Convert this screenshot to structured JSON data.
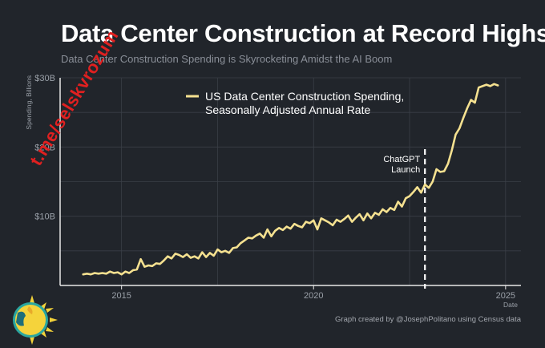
{
  "title": "Data Center Construction at Record Highs",
  "subtitle": "Data Center Construction Spending is Skyrocketing Amidst the AI Boom",
  "footer": "Graph created by @JosephPolitano using Census data",
  "watermark": "t.me/selskvrozum",
  "logo_icon": "sun-logo-icon",
  "colors": {
    "background": "#21252b",
    "line": "#f5e190",
    "grid": "#3a3f47",
    "axis_text": "#9aa0a8",
    "annotation": "#ffffff"
  },
  "chart_data": {
    "type": "line",
    "ylabel": "Spending, Billions",
    "xlabel": "Date",
    "xlim": [
      2013.4,
      2025.4
    ],
    "ylim": [
      0,
      30
    ],
    "x_ticks": [
      2015,
      2020,
      2025
    ],
    "x_tick_labels": [
      "2015",
      "2020",
      "2025"
    ],
    "y_ticks": [
      10,
      20,
      30
    ],
    "y_tick_labels": [
      "$10B",
      "$20B",
      "$30B"
    ],
    "grid": true,
    "legend": "top-center",
    "series": [
      {
        "name": "US Data Center Construction Spending, Seasonally Adjusted Annual Rate",
        "x": [
          2014.0,
          2014.1,
          2014.2,
          2014.3,
          2014.4,
          2014.5,
          2014.6,
          2014.7,
          2014.8,
          2014.9,
          2015.0,
          2015.1,
          2015.2,
          2015.3,
          2015.4,
          2015.5,
          2015.6,
          2015.7,
          2015.8,
          2015.9,
          2016.0,
          2016.1,
          2016.2,
          2016.3,
          2016.4,
          2016.5,
          2016.6,
          2016.7,
          2016.8,
          2016.9,
          2017.0,
          2017.1,
          2017.2,
          2017.3,
          2017.4,
          2017.5,
          2017.6,
          2017.7,
          2017.8,
          2017.9,
          2018.0,
          2018.1,
          2018.2,
          2018.3,
          2018.4,
          2018.5,
          2018.6,
          2018.7,
          2018.8,
          2018.9,
          2019.0,
          2019.1,
          2019.2,
          2019.3,
          2019.4,
          2019.5,
          2019.6,
          2019.7,
          2019.8,
          2019.9,
          2020.0,
          2020.1,
          2020.2,
          2020.3,
          2020.4,
          2020.5,
          2020.6,
          2020.7,
          2020.8,
          2020.9,
          2021.0,
          2021.1,
          2021.2,
          2021.3,
          2021.4,
          2021.5,
          2021.6,
          2021.7,
          2021.8,
          2021.9,
          2022.0,
          2022.1,
          2022.2,
          2022.3,
          2022.4,
          2022.5,
          2022.6,
          2022.7,
          2022.8,
          2022.9,
          2023.0,
          2023.1,
          2023.2,
          2023.3,
          2023.4,
          2023.5,
          2023.6,
          2023.7,
          2023.8,
          2023.9,
          2024.0,
          2024.1,
          2024.2,
          2024.3,
          2024.4,
          2024.5,
          2024.6,
          2024.7,
          2024.8
        ],
        "values": [
          1.6,
          1.7,
          1.6,
          1.8,
          1.7,
          1.8,
          1.7,
          2.0,
          1.8,
          1.9,
          1.6,
          2.0,
          1.8,
          2.2,
          2.3,
          3.8,
          2.7,
          2.9,
          2.8,
          3.2,
          3.1,
          3.6,
          4.2,
          3.9,
          4.6,
          4.4,
          4.1,
          4.5,
          4.0,
          4.2,
          3.9,
          4.8,
          4.1,
          4.7,
          4.3,
          5.2,
          4.8,
          5.0,
          4.7,
          5.4,
          5.5,
          6.1,
          6.5,
          6.9,
          6.8,
          7.2,
          7.5,
          6.9,
          8.1,
          7.1,
          7.9,
          8.3,
          8.0,
          8.5,
          8.2,
          8.9,
          8.6,
          8.4,
          9.2,
          9.0,
          9.4,
          8.1,
          9.7,
          9.4,
          9.1,
          8.7,
          9.5,
          9.2,
          9.6,
          10.1,
          9.2,
          9.8,
          10.3,
          9.4,
          10.4,
          9.7,
          10.5,
          10.2,
          11.0,
          10.6,
          11.2,
          10.9,
          12.1,
          11.4,
          12.6,
          12.9,
          13.5,
          14.2,
          13.4,
          14.6,
          14.1,
          15.0,
          16.8,
          16.4,
          16.5,
          17.6,
          19.5,
          21.8,
          22.7,
          24.2,
          25.6,
          26.8,
          26.4,
          28.6,
          28.8,
          29.0,
          28.8,
          29.1,
          28.9
        ]
      }
    ],
    "annotations": [
      {
        "label_line1": "ChatGPT",
        "label_line2": "Launch",
        "x": 2022.9,
        "style": "dashed-vertical"
      }
    ]
  }
}
